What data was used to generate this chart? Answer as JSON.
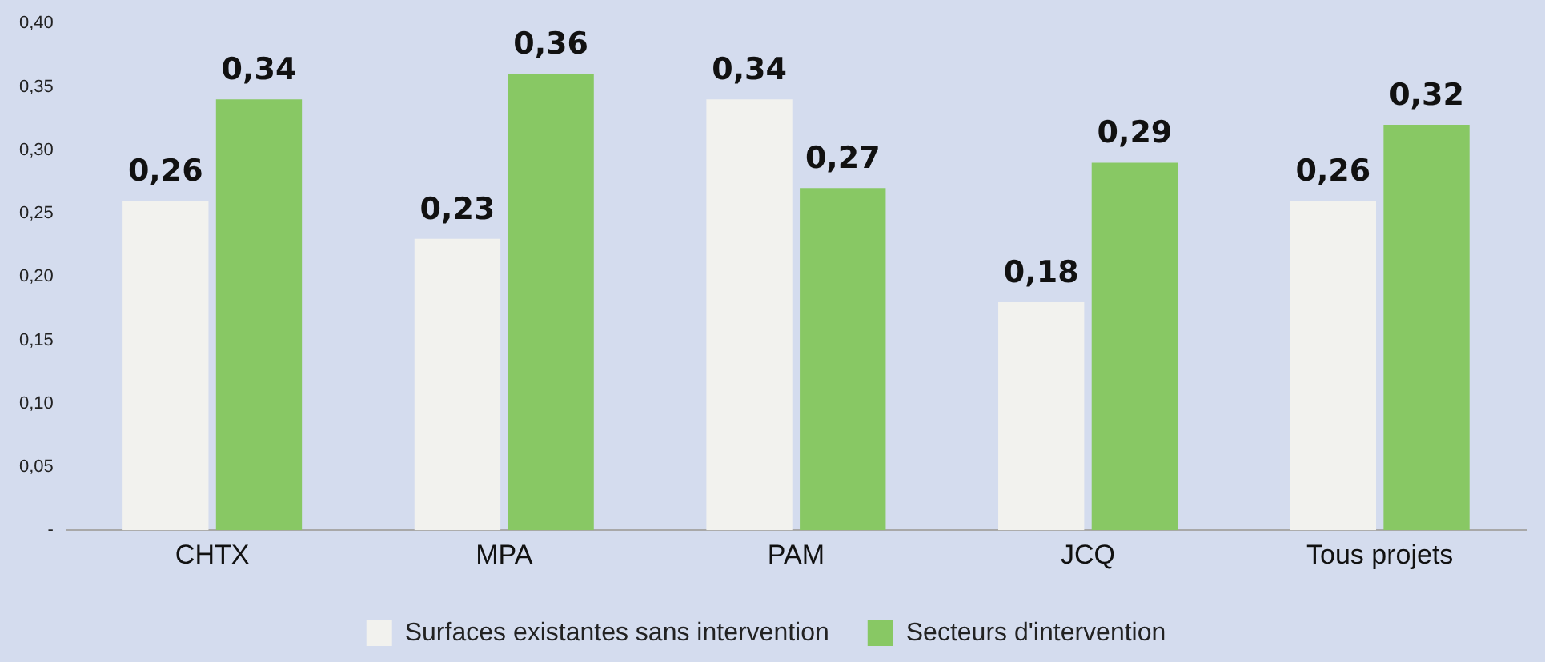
{
  "chart_data": {
    "type": "bar",
    "categories": [
      "CHTX",
      "MPA",
      "PAM",
      "JCQ",
      "Tous projets"
    ],
    "series": [
      {
        "name": "Surfaces existantes sans intervention",
        "color": "#f2f2ee",
        "values": [
          0.26,
          0.23,
          0.34,
          0.18,
          0.26
        ],
        "value_labels": [
          "0,26",
          "0,23",
          "0,34",
          "0,18",
          "0,26"
        ]
      },
      {
        "name": "Secteurs d'intervention",
        "color": "#88c864",
        "values": [
          0.34,
          0.36,
          0.27,
          0.29,
          0.32
        ],
        "value_labels": [
          "0,34",
          "0,36",
          "0,27",
          "0,29",
          "0,32"
        ]
      }
    ],
    "ylim": [
      0,
      0.4
    ],
    "yticks": [
      {
        "value": 0,
        "label": "-"
      },
      {
        "value": 0.05,
        "label": "0,05"
      },
      {
        "value": 0.1,
        "label": "0,10"
      },
      {
        "value": 0.15,
        "label": "0,15"
      },
      {
        "value": 0.2,
        "label": "0,20"
      },
      {
        "value": 0.25,
        "label": "0,25"
      },
      {
        "value": 0.3,
        "label": "0,30"
      },
      {
        "value": 0.35,
        "label": "0,35"
      },
      {
        "value": 0.4,
        "label": "0,40"
      }
    ],
    "grid": false,
    "legend": "bottom"
  }
}
